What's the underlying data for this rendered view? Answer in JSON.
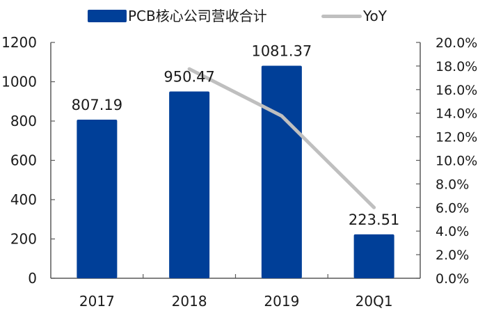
{
  "chart_data": {
    "type": "bar+line",
    "title": "",
    "categories": [
      "2017",
      "2018",
      "2019",
      "20Q1"
    ],
    "series": [
      {
        "name": "PCB核心公司营收合计",
        "type": "bar",
        "axis": "left",
        "values": [
          807.19,
          950.47,
          1081.37,
          223.51
        ],
        "data_labels": [
          "807.19",
          "950.47",
          "1081.37",
          "223.51"
        ],
        "color": "#003F98"
      },
      {
        "name": "YoY",
        "type": "line",
        "axis": "right",
        "values": [
          null,
          17.75,
          13.77,
          6.0
        ],
        "unit": "%",
        "color": "#BFBFBF"
      }
    ],
    "left_axis": {
      "ylim": [
        0,
        1200
      ],
      "ticks": [
        0,
        200,
        400,
        600,
        800,
        1000,
        1200
      ],
      "tick_labels": [
        "0",
        "200",
        "400",
        "600",
        "800",
        "1000",
        "1200"
      ]
    },
    "right_axis": {
      "ylim": [
        0,
        20
      ],
      "ticks": [
        0,
        2,
        4,
        6,
        8,
        10,
        12,
        14,
        16,
        18,
        20
      ],
      "tick_labels": [
        "0.0%",
        "2.0%",
        "4.0%",
        "6.0%",
        "8.0%",
        "10.0%",
        "12.0%",
        "14.0%",
        "16.0%",
        "18.0%",
        "20.0%"
      ]
    },
    "xlabel": "",
    "ylabel": "",
    "grid": false,
    "legend_position": "top"
  },
  "legend": {
    "bar_label": "PCB核心公司营收合计",
    "line_label": "YoY"
  }
}
